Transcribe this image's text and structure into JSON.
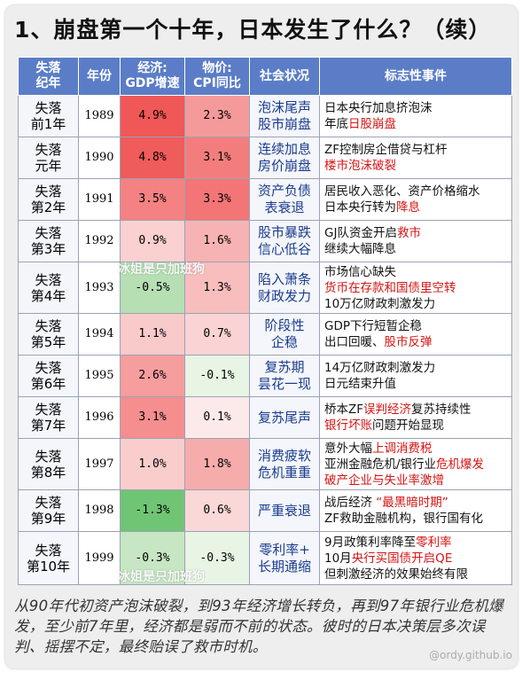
{
  "title": "1、崩盘第一个十年，日本发生了什么？（续）",
  "headers": {
    "era": [
      "失落",
      "纪年"
    ],
    "year": "年份",
    "gdp": [
      "经济:",
      "GDP增速"
    ],
    "cpi": [
      "物价:",
      "CPI同比"
    ],
    "social": "社会状况",
    "event": "标志性事件"
  },
  "colors": {
    "header": "#5b7dc7",
    "event_highlight": "#d51414",
    "social_text": "#1a3c8e"
  },
  "rows": [
    {
      "era": [
        "失落",
        "前1年"
      ],
      "year": "1989",
      "gdp": "4.9%",
      "gdp_value": 4.9,
      "cpi": "2.3%",
      "cpi_value": 2.3,
      "social": [
        "泡沫尾声",
        "股市崩盘"
      ],
      "events": [
        [
          {
            "t": "日本央行加息挤泡沫",
            "r": false
          }
        ],
        [
          {
            "t": "年底",
            "r": false
          },
          {
            "t": "日股崩盘",
            "r": true
          }
        ]
      ]
    },
    {
      "era": [
        "失落",
        "元年"
      ],
      "year": "1990",
      "gdp": "4.8%",
      "gdp_value": 4.8,
      "cpi": "3.1%",
      "cpi_value": 3.1,
      "social": [
        "连续加息",
        "房价崩盘"
      ],
      "events": [
        [
          {
            "t": "ZF控制房企借贷与杠杆",
            "r": false
          }
        ],
        [
          {
            "t": "楼市泡沫破裂",
            "r": true
          }
        ]
      ]
    },
    {
      "era": [
        "失落",
        "第2年"
      ],
      "year": "1991",
      "gdp": "3.5%",
      "gdp_value": 3.5,
      "cpi": "3.3%",
      "cpi_value": 3.3,
      "social": [
        "资产负债",
        "表衰退"
      ],
      "events": [
        [
          {
            "t": "居民收入恶化、资产价格缩水",
            "r": false
          }
        ],
        [
          {
            "t": "日本央行转为",
            "r": false
          },
          {
            "t": "降息",
            "r": true
          }
        ]
      ]
    },
    {
      "era": [
        "失落",
        "第3年"
      ],
      "year": "1992",
      "gdp": "0.9%",
      "gdp_value": 0.9,
      "cpi": "1.6%",
      "cpi_value": 1.6,
      "social": [
        "股市暴跌",
        "信心低谷"
      ],
      "events": [
        [
          {
            "t": "GJ队资金开启",
            "r": false
          },
          {
            "t": "救市",
            "r": true
          }
        ],
        [
          {
            "t": "继续大幅降息",
            "r": false
          }
        ]
      ]
    },
    {
      "era": [
        "失落",
        "第4年"
      ],
      "year": "1993",
      "gdp": "-0.5%",
      "gdp_value": -0.5,
      "cpi": "1.3%",
      "cpi_value": 1.3,
      "social": [
        "陷入萧条",
        "财政发力"
      ],
      "events": [
        [
          {
            "t": "市场信心缺失",
            "r": false
          }
        ],
        [
          {
            "t": "货币在存款和国债里空转",
            "r": true
          }
        ],
        [
          {
            "t": "10万亿财政刺激发力",
            "r": false
          }
        ]
      ]
    },
    {
      "era": [
        "失落",
        "第5年"
      ],
      "year": "1994",
      "gdp": "1.1%",
      "gdp_value": 1.1,
      "cpi": "0.7%",
      "cpi_value": 0.7,
      "social": [
        "阶段性",
        "企稳"
      ],
      "events": [
        [
          {
            "t": "GDP下行短暂企稳",
            "r": false
          }
        ],
        [
          {
            "t": "出口回暖、",
            "r": false
          },
          {
            "t": "股市反弹",
            "r": true
          }
        ]
      ]
    },
    {
      "era": [
        "失落",
        "第6年"
      ],
      "year": "1995",
      "gdp": "2.6%",
      "gdp_value": 2.6,
      "cpi": "-0.1%",
      "cpi_value": -0.1,
      "social": [
        "复苏期",
        "昙花一现"
      ],
      "events": [
        [
          {
            "t": "14万亿财政刺激发力",
            "r": false
          }
        ],
        [
          {
            "t": "日元结束升值",
            "r": false
          }
        ]
      ]
    },
    {
      "era": [
        "失落",
        "第7年"
      ],
      "year": "1996",
      "gdp": "3.1%",
      "gdp_value": 3.1,
      "cpi": "0.1%",
      "cpi_value": 0.1,
      "social": [
        "复苏尾声"
      ],
      "events": [
        [
          {
            "t": "桥本ZF",
            "r": false
          },
          {
            "t": "误判经济",
            "r": true
          },
          {
            "t": "复苏持续性",
            "r": false
          }
        ],
        [
          {
            "t": "银行坏账",
            "r": true
          },
          {
            "t": "问题开始显现",
            "r": false
          }
        ]
      ]
    },
    {
      "era": [
        "失落",
        "第8年"
      ],
      "year": "1997",
      "gdp": "1.0%",
      "gdp_value": 1.0,
      "cpi": "1.8%",
      "cpi_value": 1.8,
      "social": [
        "消费疲软",
        "危机重重"
      ],
      "events": [
        [
          {
            "t": "意外大幅",
            "r": false
          },
          {
            "t": "上调消费税",
            "r": true
          }
        ],
        [
          {
            "t": "亚洲金融危机/银行业",
            "r": false
          },
          {
            "t": "危机爆发",
            "r": true
          }
        ],
        [
          {
            "t": "破产企业与失业率激增",
            "r": true
          }
        ]
      ]
    },
    {
      "era": [
        "失落",
        "第9年"
      ],
      "year": "1998",
      "gdp": "-1.3%",
      "gdp_value": -1.3,
      "cpi": "0.6%",
      "cpi_value": 0.6,
      "social": [
        "严重衰退"
      ],
      "events": [
        [
          {
            "t": "战后经济 ",
            "r": false
          },
          {
            "t": "“最黑暗时期”",
            "r": true
          }
        ],
        [
          {
            "t": "ZF救助金融机构，银行国有化",
            "r": false
          }
        ]
      ]
    },
    {
      "era": [
        "失落",
        "第10年"
      ],
      "year": "1999",
      "gdp": "-0.3%",
      "gdp_value": -0.3,
      "cpi": "-0.3%",
      "cpi_value": -0.3,
      "social": [
        "零利率+",
        "长期通缩"
      ],
      "events": [
        [
          {
            "t": "9月政策利率降至",
            "r": false
          },
          {
            "t": "零利率",
            "r": true
          }
        ],
        [
          {
            "t": "10月",
            "r": false
          },
          {
            "t": "央行买国债开启QE",
            "r": true
          }
        ],
        [
          {
            "t": "但刺激经济的效果始终有限",
            "r": false
          }
        ]
      ]
    }
  ],
  "footer": "从90年代初资产泡沫破裂，到93年经济增长转负，再到97年银行业危机爆发，至少前7年里，经济都是弱而不前的状态。彼时的日本决策层多次误判、摇摆不定，最终贻误了救市时机。",
  "watermarks": [
    "冰姐是只加班狗",
    "冰姐是只加班狗"
  ],
  "site_mark": "@ordy.github.io"
}
